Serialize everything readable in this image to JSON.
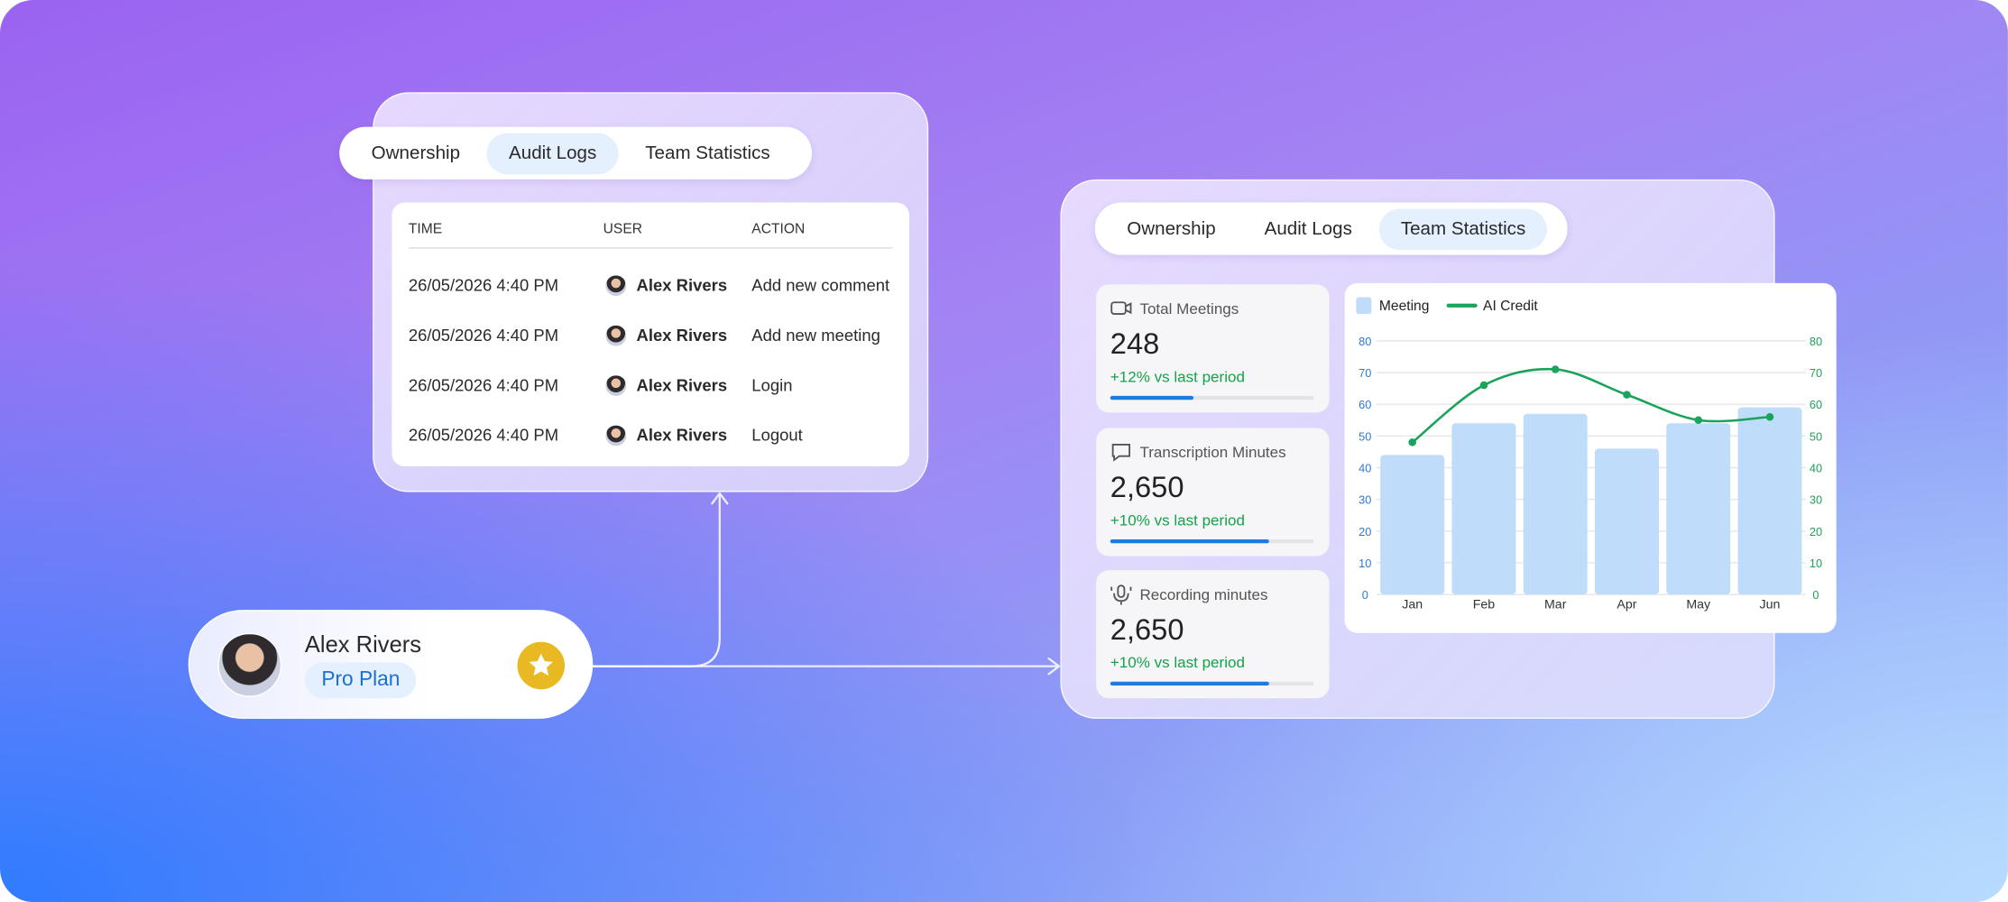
{
  "audit_panel": {
    "tabs": [
      "Ownership",
      "Audit Logs",
      "Team Statistics"
    ],
    "active_tab": 1,
    "table": {
      "header": [
        "TIME",
        "USER",
        "ACTION"
      ],
      "rows": [
        [
          "26/05/2026 4:40 PM",
          "Alex Rivers",
          "Add new comment"
        ],
        [
          "26/05/2026 4:40 PM",
          "Alex Rivers",
          "Add new meeting"
        ],
        [
          "26/05/2026 4:40 PM",
          "Alex Rivers",
          "Login"
        ],
        [
          "26/05/2026 4:40 PM",
          "Alex Rivers",
          "Logout"
        ]
      ]
    }
  },
  "profile": {
    "name": "Alex Rivers",
    "plan": "Pro Plan"
  },
  "stats_panel": {
    "tabs": [
      "Ownership",
      "Audit Logs",
      "Team Statistics"
    ],
    "active_tab": 2,
    "kpis": [
      {
        "label": "Total Meetings",
        "value": "248",
        "change": "+12% vs last period",
        "progress": 41
      },
      {
        "label": "Transcription Minutes",
        "value": "2,650",
        "change": "+10% vs last period",
        "progress": 78
      },
      {
        "label": "Recording minutes",
        "value": "2,650",
        "change": "+10% vs last period",
        "progress": 78
      }
    ],
    "chart": {
      "type": "bar",
      "categories": [
        "Jan",
        "Feb",
        "Mar",
        "Apr",
        "May",
        "Jun"
      ],
      "series": [
        {
          "name": "Meeting",
          "type": "bar",
          "color": "#bfdcfb",
          "values": [
            44,
            54,
            57,
            46,
            54,
            59
          ]
        },
        {
          "name": "AI Credit",
          "type": "line",
          "axis": "y2",
          "color": "#1aa35a",
          "values": [
            48,
            66,
            71,
            63,
            55,
            56
          ]
        }
      ],
      "ylim": [
        0,
        80
      ],
      "yticks": [
        0,
        10,
        20,
        30,
        40,
        50,
        60,
        70,
        80
      ],
      "y2lim": [
        0,
        80
      ],
      "y2ticks": [
        0,
        10,
        20,
        30,
        40,
        50,
        60,
        70,
        80
      ],
      "grid": true
    }
  }
}
